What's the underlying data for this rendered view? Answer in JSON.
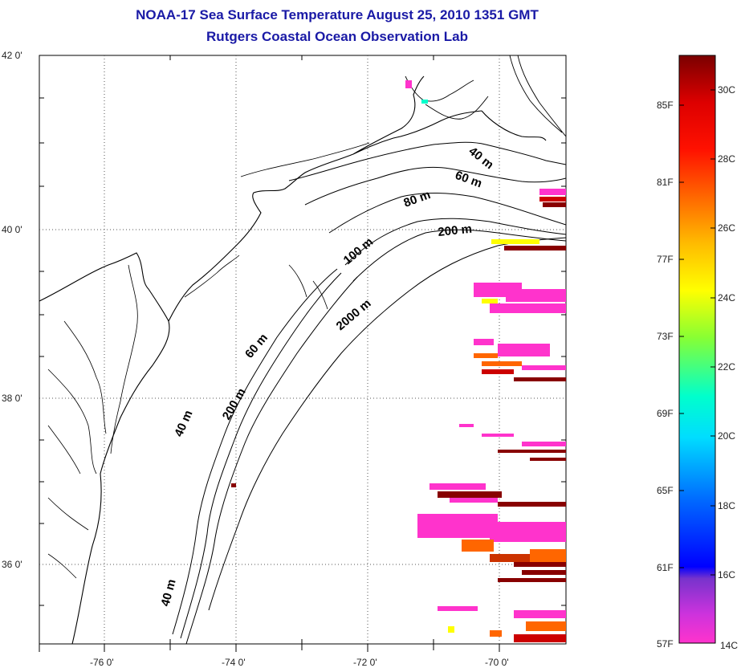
{
  "title": {
    "line1": "NOAA-17 Sea Surface Temperature August 25, 2010 1351 GMT",
    "line2": "Rutgers Coastal Ocean Observation Lab"
  },
  "map": {
    "lat_labels": [
      "42 0'",
      "40 0'",
      "38 0'",
      "36 0'"
    ],
    "lon_labels": [
      "-76 0'",
      "-74 0'",
      "-72 0'",
      "-70 0'"
    ],
    "grid": "dotted",
    "contour_labels": [
      "40 m",
      "60 m",
      "80 m",
      "200 m",
      "100 m",
      "2000 m",
      "60 m",
      "200 m",
      "40 m",
      "40 m"
    ]
  },
  "colorbar": {
    "fahrenheit_labels": [
      "85F",
      "81F",
      "77F",
      "73F",
      "69F",
      "65F",
      "61F",
      "57F"
    ],
    "celsius_labels": [
      "30C",
      "28C",
      "26C",
      "24C",
      "22C",
      "20C",
      "18C",
      "16C",
      "14C"
    ],
    "colors": [
      "#ff33cc",
      "#9933cc",
      "#0000ff",
      "#0077ff",
      "#00ccff",
      "#00ffdd",
      "#66ff66",
      "#ccff00",
      "#ffff00",
      "#ffaa00",
      "#ff6600",
      "#ff0000",
      "#cc0000",
      "#880000"
    ]
  }
}
